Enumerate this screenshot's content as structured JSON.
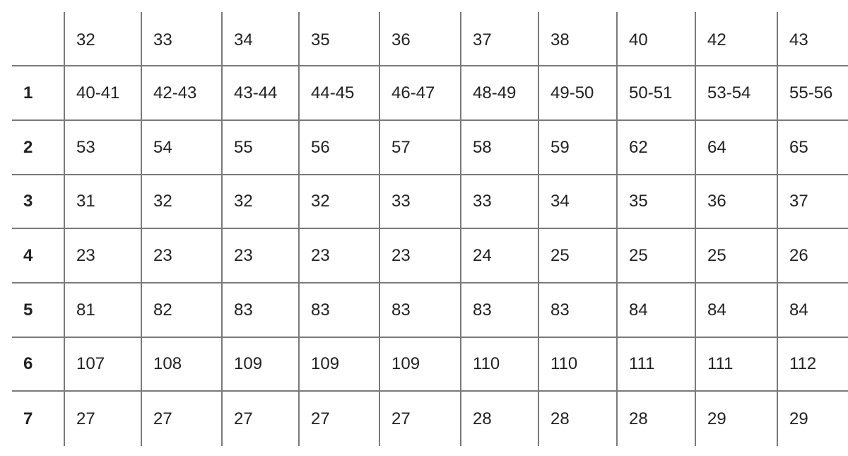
{
  "table": {
    "header": [
      "",
      "32",
      "33",
      "34",
      "35",
      "36",
      "37",
      "38",
      "40",
      "42",
      "43"
    ],
    "rows": [
      [
        "1",
        "40-41",
        "42-43",
        "43-44",
        "44-45",
        "46-47",
        "48-49",
        "49-50",
        "50-51",
        "53-54",
        "55-56"
      ],
      [
        "2",
        "53",
        "54",
        "55",
        "56",
        "57",
        "58",
        "59",
        "62",
        "64",
        "65"
      ],
      [
        "3",
        "31",
        "32",
        "32",
        "32",
        "33",
        "33",
        "34",
        "35",
        "36",
        "37"
      ],
      [
        "4",
        "23",
        "23",
        "23",
        "23",
        "23",
        "24",
        "25",
        "25",
        "25",
        "26"
      ],
      [
        "5",
        "81",
        "82",
        "83",
        "83",
        "83",
        "83",
        "83",
        "84",
        "84",
        "84"
      ],
      [
        "6",
        "107",
        "108",
        "109",
        "109",
        "109",
        "110",
        "110",
        "111",
        "111",
        "112"
      ],
      [
        "7",
        "27",
        "27",
        "27",
        "27",
        "27",
        "28",
        "28",
        "28",
        "29",
        "29"
      ]
    ]
  }
}
